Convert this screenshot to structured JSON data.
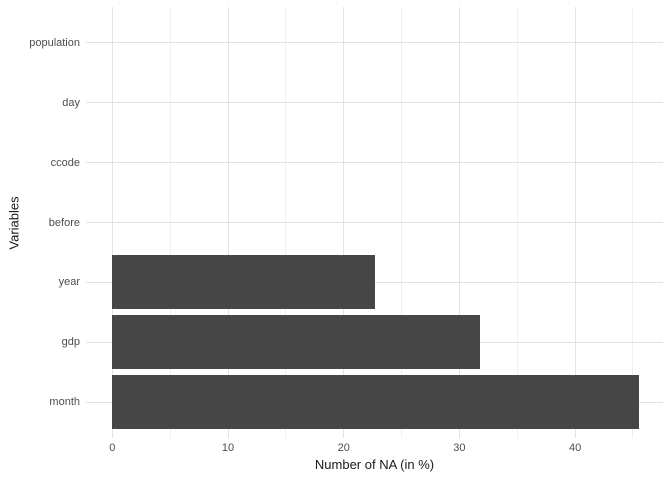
{
  "chart_data": {
    "type": "bar",
    "orientation": "horizontal",
    "title": "",
    "xlabel": "Number of NA (in %)",
    "ylabel": "Variables",
    "categories": [
      "population",
      "day",
      "ccode",
      "before",
      "year",
      "gdp",
      "month"
    ],
    "values": [
      0,
      0,
      0,
      0,
      22.7,
      31.8,
      45.5
    ],
    "x_major_ticks": [
      0,
      10,
      20,
      30,
      40
    ],
    "x_minor_ticks": [
      5,
      15,
      25,
      35,
      45
    ],
    "xlim": [
      -2.28,
      47.6
    ],
    "grid": "on",
    "legend": "none",
    "bar_color": "#464646",
    "grid_major_color": "#e3e3e3",
    "grid_minor_color": "#efefef",
    "axis_text_color": "#4d4d4d",
    "axis_title_color": "#1a1a1a",
    "background_color": "#ffffff"
  }
}
